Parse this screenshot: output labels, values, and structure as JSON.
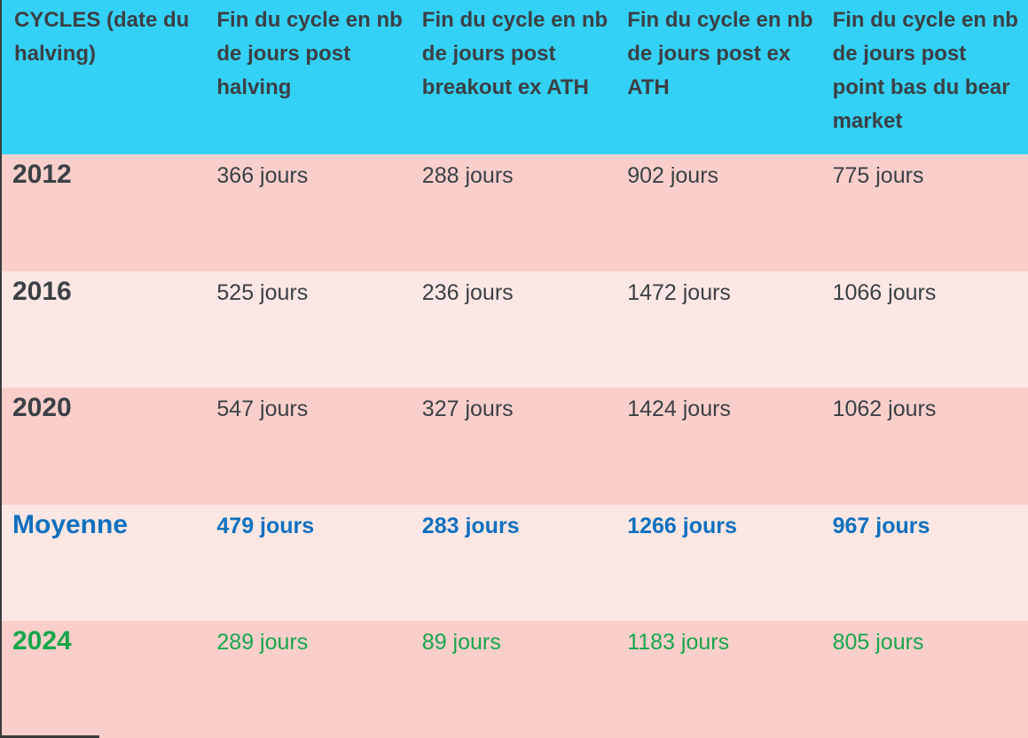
{
  "table": {
    "columns": [
      {
        "label": "CYCLES (date du halving)"
      },
      {
        "label": "Fin du cycle en nb de jours post halving"
      },
      {
        "label": "Fin du cycle en nb de jours post breakout ex ATH"
      },
      {
        "label": "Fin du cycle en nb de jours post ex ATH"
      },
      {
        "label": "Fin du cycle en nb de jours post point bas du bear market"
      }
    ],
    "rows": [
      {
        "label": "2012",
        "values": [
          "366 jours",
          "288 jours",
          "902 jours",
          "775 jours"
        ]
      },
      {
        "label": "2016",
        "values": [
          "525 jours",
          "236 jours",
          "1472 jours",
          "1066 jours"
        ]
      },
      {
        "label": "2020",
        "values": [
          "547 jours",
          "327 jours",
          "1424 jours",
          "1062 jours"
        ]
      },
      {
        "label": "Moyenne",
        "values": [
          "479 jours",
          "283 jours",
          "1266 jours",
          "967 jours"
        ]
      },
      {
        "label": "2024",
        "values": [
          "289 jours",
          "89 jours",
          "1183 jours",
          "805 jours"
        ]
      }
    ]
  },
  "chart_data": {
    "type": "table",
    "title": "CYCLES (date du halving)",
    "columns": [
      "CYCLES (date du halving)",
      "Fin du cycle en nb de jours post halving",
      "Fin du cycle en nb de jours post breakout ex ATH",
      "Fin du cycle en nb de jours post ex ATH",
      "Fin du cycle en nb de jours post point bas du bear market"
    ],
    "rows": [
      [
        "2012",
        "366 jours",
        "288 jours",
        "902 jours",
        "775 jours"
      ],
      [
        "2016",
        "525 jours",
        "236 jours",
        "1472 jours",
        "1066 jours"
      ],
      [
        "2020",
        "547 jours",
        "327 jours",
        "1424 jours",
        "1062 jours"
      ],
      [
        "Moyenne",
        "479 jours",
        "283 jours",
        "1266 jours",
        "967 jours"
      ],
      [
        "2024",
        "289 jours",
        "89 jours",
        "1183 jours",
        "805 jours"
      ]
    ],
    "series": [
      {
        "name": "Fin du cycle en nb de jours post halving",
        "values": [
          366,
          525,
          547,
          479,
          289
        ]
      },
      {
        "name": "Fin du cycle en nb de jours post breakout ex ATH",
        "values": [
          288,
          236,
          327,
          283,
          89
        ]
      },
      {
        "name": "Fin du cycle en nb de jours post ex ATH",
        "values": [
          902,
          1472,
          1424,
          1266,
          1183
        ]
      },
      {
        "name": "Fin du cycle en nb de jours post point bas du bear market",
        "values": [
          775,
          1066,
          1062,
          967,
          805
        ]
      }
    ],
    "categories": [
      "2012",
      "2016",
      "2020",
      "Moyenne",
      "2024"
    ],
    "unit": "jours"
  },
  "colors": {
    "header-bg": "#33d1f5",
    "row-dark": "#facfcb",
    "row-light": "#fde7e4",
    "text-dark": "#3b4045",
    "accent-blue": "#0e70be",
    "accent-green": "#16a64a",
    "border-dark": "#3a3a3a"
  }
}
